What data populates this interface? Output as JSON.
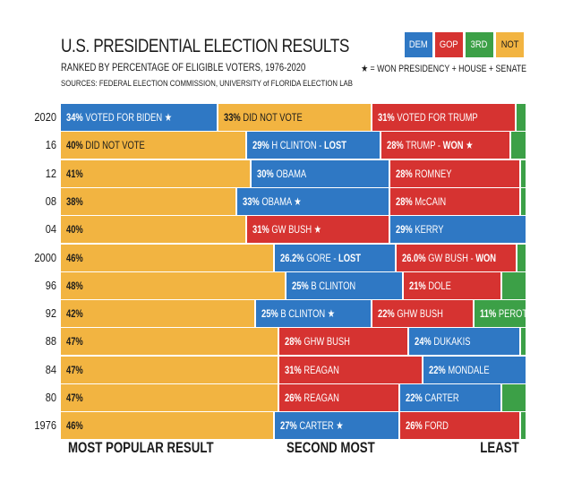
{
  "title": "U.S. PRESIDENTIAL ELECTION RESULTS",
  "subtitle": "RANKED BY PERCENTAGE OF ELIGIBLE VOTERS, 1976-2020",
  "sources": "SOURCES: FEDERAL ELECTION COMMISSION, UNIVERSITY of FLORIDA ELECTION LAB",
  "legend": {
    "items": [
      {
        "label": "DEM",
        "key": "dem",
        "color": "#2f78c4"
      },
      {
        "label": "GOP",
        "key": "gop",
        "color": "#d63331"
      },
      {
        "label": "3RD",
        "key": "third",
        "color": "#3ca047"
      },
      {
        "label": "NOT",
        "key": "not",
        "color": "#f2b441"
      }
    ],
    "star_note": "★ = WON PRESIDENCY + HOUSE + SENATE"
  },
  "footer": {
    "left": "MOST POPULAR RESULT",
    "middle": "SECOND MOST",
    "right": "LEAST"
  },
  "chart_data": {
    "type": "bar",
    "orientation": "horizontal-stacked",
    "title": "U.S. PRESIDENTIAL ELECTION RESULTS",
    "subtitle": "RANKED BY PERCENTAGE OF ELIGIBLE VOTERS, 1976-2020",
    "categories": [
      "2020",
      "16",
      "12",
      "08",
      "04",
      "2000",
      "96",
      "92",
      "88",
      "84",
      "80",
      "1976"
    ],
    "rows": [
      {
        "year": "2020",
        "segments": [
          {
            "key": "dem",
            "value": 34,
            "pct": "34%",
            "text": "VOTED FOR BIDEN ★"
          },
          {
            "key": "not",
            "value": 33,
            "pct": "33%",
            "text": "DID NOT VOTE"
          },
          {
            "key": "gop",
            "value": 31,
            "pct": "31%",
            "text": "VOTED FOR TRUMP"
          },
          {
            "key": "third",
            "value": 2,
            "pct": "",
            "text": ""
          }
        ]
      },
      {
        "year": "16",
        "segments": [
          {
            "key": "not",
            "value": 40,
            "pct": "40%",
            "text": "DID NOT VOTE"
          },
          {
            "key": "dem",
            "value": 29,
            "pct": "29%",
            "text": "H CLINTON - ",
            "strong": "LOST"
          },
          {
            "key": "gop",
            "value": 28,
            "pct": "28%",
            "text": "TRUMP - ",
            "strong": "WON",
            "after": " ★"
          },
          {
            "key": "third",
            "value": 3,
            "pct": "",
            "text": ""
          }
        ]
      },
      {
        "year": "12",
        "segments": [
          {
            "key": "not",
            "value": 41,
            "pct": "41%",
            "text": ""
          },
          {
            "key": "dem",
            "value": 30,
            "pct": "30%",
            "text": "OBAMA"
          },
          {
            "key": "gop",
            "value": 28,
            "pct": "28%",
            "text": "ROMNEY"
          },
          {
            "key": "third",
            "value": 1,
            "pct": "",
            "text": ""
          }
        ]
      },
      {
        "year": "08",
        "segments": [
          {
            "key": "not",
            "value": 38,
            "pct": "38%",
            "text": ""
          },
          {
            "key": "dem",
            "value": 33,
            "pct": "33%",
            "text": "OBAMA ★"
          },
          {
            "key": "gop",
            "value": 28,
            "pct": "28%",
            "text": "McCAIN"
          },
          {
            "key": "third",
            "value": 1,
            "pct": "",
            "text": ""
          }
        ]
      },
      {
        "year": "04",
        "segments": [
          {
            "key": "not",
            "value": 40,
            "pct": "40%",
            "text": ""
          },
          {
            "key": "gop",
            "value": 31,
            "pct": "31%",
            "text": "GW BUSH ★"
          },
          {
            "key": "dem",
            "value": 29,
            "pct": "29%",
            "text": "KERRY"
          }
        ]
      },
      {
        "year": "2000",
        "segments": [
          {
            "key": "not",
            "value": 46,
            "pct": "46%",
            "text": ""
          },
          {
            "key": "dem",
            "value": 26.2,
            "pct": "26.2%",
            "text": "GORE - ",
            "strong": "LOST"
          },
          {
            "key": "gop",
            "value": 26.0,
            "pct": "26.0%",
            "text": "GW BUSH - ",
            "strong": "WON"
          },
          {
            "key": "third",
            "value": 1.8,
            "pct": "",
            "text": ""
          }
        ]
      },
      {
        "year": "96",
        "segments": [
          {
            "key": "not",
            "value": 48,
            "pct": "48%",
            "text": ""
          },
          {
            "key": "dem",
            "value": 25,
            "pct": "25%",
            "text": "B CLINTON"
          },
          {
            "key": "gop",
            "value": 21,
            "pct": "21%",
            "text": "DOLE"
          },
          {
            "key": "third",
            "value": 5,
            "pct": "",
            "text": ""
          }
        ]
      },
      {
        "year": "92",
        "segments": [
          {
            "key": "not",
            "value": 42,
            "pct": "42%",
            "text": ""
          },
          {
            "key": "dem",
            "value": 25,
            "pct": "25%",
            "text": "B CLINTON ★"
          },
          {
            "key": "gop",
            "value": 22,
            "pct": "22%",
            "text": "GHW BUSH"
          },
          {
            "key": "third",
            "value": 11,
            "pct": "11%",
            "text": "PEROT"
          }
        ]
      },
      {
        "year": "88",
        "segments": [
          {
            "key": "not",
            "value": 47,
            "pct": "47%",
            "text": ""
          },
          {
            "key": "gop",
            "value": 28,
            "pct": "28%",
            "text": "GHW BUSH"
          },
          {
            "key": "dem",
            "value": 24,
            "pct": "24%",
            "text": "DUKAKIS"
          },
          {
            "key": "third",
            "value": 1,
            "pct": "",
            "text": ""
          }
        ]
      },
      {
        "year": "84",
        "segments": [
          {
            "key": "not",
            "value": 47,
            "pct": "47%",
            "text": ""
          },
          {
            "key": "gop",
            "value": 31,
            "pct": "31%",
            "text": "REAGAN"
          },
          {
            "key": "dem",
            "value": 22,
            "pct": "22%",
            "text": "MONDALE"
          }
        ]
      },
      {
        "year": "80",
        "segments": [
          {
            "key": "not",
            "value": 47,
            "pct": "47%",
            "text": ""
          },
          {
            "key": "gop",
            "value": 26,
            "pct": "26%",
            "text": "REAGAN"
          },
          {
            "key": "dem",
            "value": 22,
            "pct": "22%",
            "text": "CARTER"
          },
          {
            "key": "third",
            "value": 5,
            "pct": "",
            "text": ""
          }
        ]
      },
      {
        "year": "1976",
        "segments": [
          {
            "key": "not",
            "value": 46,
            "pct": "46%",
            "text": ""
          },
          {
            "key": "dem",
            "value": 27,
            "pct": "27%",
            "text": "CARTER ★"
          },
          {
            "key": "gop",
            "value": 26,
            "pct": "26%",
            "text": "FORD"
          },
          {
            "key": "third",
            "value": 1,
            "pct": "",
            "text": ""
          }
        ]
      }
    ]
  }
}
